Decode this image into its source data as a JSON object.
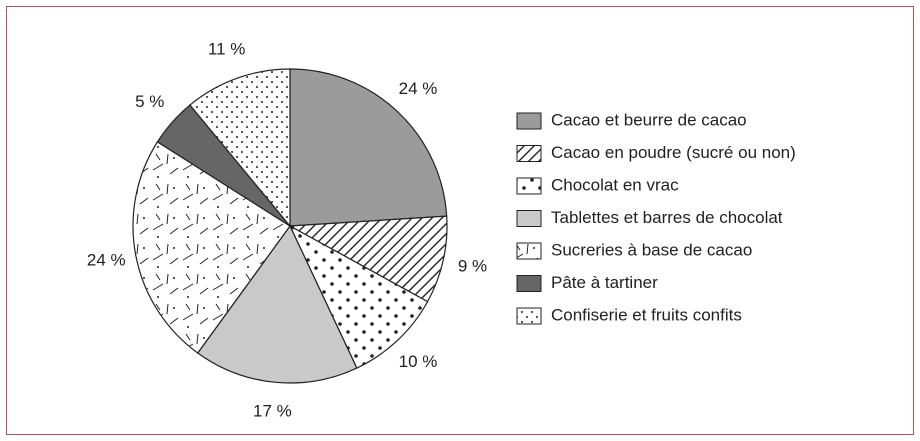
{
  "chart_data": {
    "type": "pie",
    "categories": [
      "Cacao et beurre de cacao",
      "Cacao en poudre (sucré ou non)",
      "Chocolat en vrac",
      "Tablettes et barres de chocolat",
      "Sucreries à base de cacao",
      "Pâte à tartiner",
      "Confiserie et fruits confits"
    ],
    "values": [
      24,
      9,
      10,
      17,
      24,
      5,
      11
    ],
    "value_labels": [
      "24 %",
      "9 %",
      "10 %",
      "17 %",
      "24 %",
      "5 %",
      "11 %"
    ],
    "colors": [
      "#9b9b9b",
      "hatch",
      "dots",
      "#c9c9c9",
      "dashes",
      "#666666",
      "fine-dots"
    ],
    "legend": "right"
  }
}
